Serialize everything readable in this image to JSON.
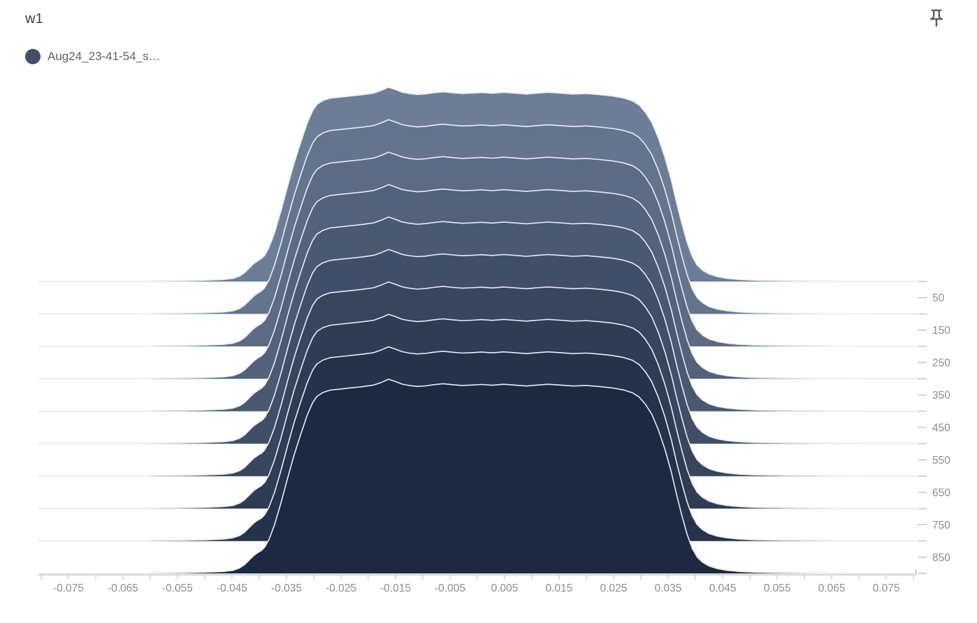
{
  "card": {
    "title": "w1",
    "legend": {
      "label": "Aug24_23-41-54_s…",
      "color": "#425066"
    },
    "pin_tooltip": "Pin card"
  },
  "chart_data": {
    "type": "area",
    "subtype": "histogram-ridgeline-offset",
    "title": "w1",
    "xlabel": "",
    "ylabel": "",
    "x_axis": {
      "min": -0.0805,
      "max": 0.0805,
      "minor_tick_step": 0.005,
      "tick_labels": [
        "-0.075",
        "-0.065",
        "-0.055",
        "-0.045",
        "-0.035",
        "-0.025",
        "-0.015",
        "-0.005",
        "0.005",
        "0.015",
        "0.025",
        "0.035",
        "0.045",
        "0.055",
        "0.065",
        "0.075"
      ]
    },
    "step_axis": {
      "side": "right",
      "min": 0,
      "max": 900,
      "minor_tick_every": 50,
      "tick_labels": [
        "50",
        "150",
        "250",
        "350",
        "450",
        "550",
        "650",
        "750",
        "850"
      ]
    },
    "series_name": "Aug24_23-41-54_s…",
    "steps": [
      0,
      100,
      200,
      300,
      400,
      500,
      600,
      700,
      800,
      900
    ],
    "profile": [
      [
        -0.062,
        0.0
      ],
      [
        -0.059,
        0.003
      ],
      [
        -0.054,
        0.004
      ],
      [
        -0.05,
        0.006
      ],
      [
        -0.0465,
        0.01
      ],
      [
        -0.0448,
        0.016
      ],
      [
        -0.0436,
        0.028
      ],
      [
        -0.0427,
        0.045
      ],
      [
        -0.0418,
        0.07
      ],
      [
        -0.041,
        0.092
      ],
      [
        -0.0402,
        0.108
      ],
      [
        -0.0396,
        0.118
      ],
      [
        -0.039,
        0.135
      ],
      [
        -0.0382,
        0.175
      ],
      [
        -0.0372,
        0.25
      ],
      [
        -0.036,
        0.365
      ],
      [
        -0.0348,
        0.49
      ],
      [
        -0.0336,
        0.61
      ],
      [
        -0.0324,
        0.715
      ],
      [
        -0.0312,
        0.815
      ],
      [
        -0.0302,
        0.88
      ],
      [
        -0.0294,
        0.912
      ],
      [
        -0.0283,
        0.932
      ],
      [
        -0.027,
        0.944
      ],
      [
        -0.025,
        0.95
      ],
      [
        -0.023,
        0.956
      ],
      [
        -0.021,
        0.962
      ],
      [
        -0.019,
        0.97
      ],
      [
        -0.0175,
        0.985
      ],
      [
        -0.0163,
        1.0
      ],
      [
        -0.015,
        0.988
      ],
      [
        -0.0138,
        0.975
      ],
      [
        -0.0125,
        0.968
      ],
      [
        -0.011,
        0.963
      ],
      [
        -0.0095,
        0.966
      ],
      [
        -0.008,
        0.972
      ],
      [
        -0.0063,
        0.977
      ],
      [
        -0.0045,
        0.972
      ],
      [
        -0.0028,
        0.968
      ],
      [
        -0.001,
        0.97
      ],
      [
        0.0008,
        0.973
      ],
      [
        0.0028,
        0.969
      ],
      [
        0.0048,
        0.974
      ],
      [
        0.0068,
        0.97
      ],
      [
        0.009,
        0.965
      ],
      [
        0.011,
        0.97
      ],
      [
        0.013,
        0.974
      ],
      [
        0.0152,
        0.97
      ],
      [
        0.0175,
        0.965
      ],
      [
        0.02,
        0.968
      ],
      [
        0.0225,
        0.962
      ],
      [
        0.0248,
        0.955
      ],
      [
        0.0268,
        0.945
      ],
      [
        0.0285,
        0.93
      ],
      [
        0.0297,
        0.908
      ],
      [
        0.0308,
        0.872
      ],
      [
        0.032,
        0.82
      ],
      [
        0.0332,
        0.74
      ],
      [
        0.0344,
        0.64
      ],
      [
        0.0356,
        0.52
      ],
      [
        0.0366,
        0.4
      ],
      [
        0.0376,
        0.29
      ],
      [
        0.0385,
        0.2
      ],
      [
        0.0394,
        0.13
      ],
      [
        0.0403,
        0.085
      ],
      [
        0.0413,
        0.058
      ],
      [
        0.0425,
        0.038
      ],
      [
        0.044,
        0.025
      ],
      [
        0.0458,
        0.016
      ],
      [
        0.048,
        0.01
      ],
      [
        0.051,
        0.006
      ],
      [
        0.056,
        0.004
      ],
      [
        0.064,
        0.002
      ],
      [
        0.0712,
        0.0
      ]
    ],
    "colors": {
      "ridge_back": "#6e7d97",
      "ridge_front": "#1d2940",
      "ridge_outline": "#e7edf5",
      "baseline": "#e3e3e3",
      "axis_line": "#bdbdbd",
      "tick_mark": "#c4c4c4",
      "tick_text": "#8d8d8d"
    },
    "legend_position": "top-left",
    "grid": "step-baselines-only"
  }
}
